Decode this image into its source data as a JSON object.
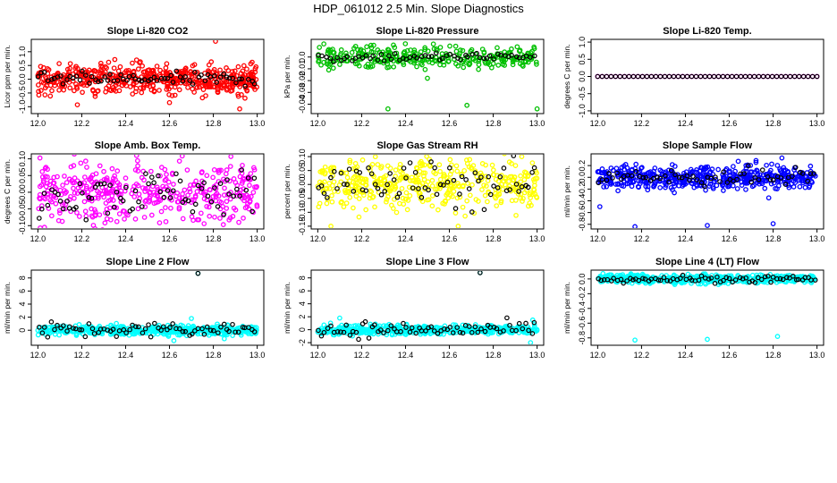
{
  "title": "HDP_061012  2.5 Min. Slope Diagnostics",
  "chart_data": [
    {
      "type": "scatter",
      "title": "Slope Li-820 CO2",
      "ylabel": "Licor ppm per min.",
      "color": "#ff0000",
      "xlim": [
        11.97,
        13.03
      ],
      "ylim": [
        -1.25,
        1.45
      ],
      "xticks": [
        12.0,
        12.2,
        12.4,
        12.6,
        12.8,
        13.0
      ],
      "yticks": [
        -1.0,
        -0.5,
        0.0,
        0.5,
        1.0
      ],
      "ytick_labels": [
        "-1.0",
        "-0.5",
        "0.0",
        "0.5",
        "1.0"
      ],
      "spread": 0.27,
      "black_spread": 0.12,
      "n": 500,
      "nb": 70,
      "outliers": [
        [
          12.81,
          1.38
        ],
        [
          12.18,
          -0.93
        ],
        [
          12.92,
          -1.08
        ],
        [
          12.6,
          -0.85
        ],
        [
          12.45,
          0.7
        ]
      ]
    },
    {
      "type": "scatter",
      "title": "Slope Li-820 Pressure",
      "ylabel": "kPa per min.",
      "color": "#00c000",
      "xlim": [
        11.97,
        13.03
      ],
      "ylim": [
        -0.048,
        0.015
      ],
      "xticks": [
        12.0,
        12.2,
        12.4,
        12.6,
        12.8,
        13.0
      ],
      "yticks": [
        -0.04,
        -0.03,
        -0.02,
        -0.01,
        0.0
      ],
      "ytick_labels": [
        "-0.04",
        "-0.03",
        "-0.02",
        "-0.01",
        "0.0"
      ],
      "spread": 0.0045,
      "black_spread": 0.002,
      "n": 300,
      "nb": 60,
      "outliers": [
        [
          12.32,
          -0.044
        ],
        [
          12.68,
          -0.041
        ],
        [
          13.0,
          -0.044
        ],
        [
          12.05,
          -0.011
        ],
        [
          12.5,
          -0.018
        ]
      ]
    },
    {
      "type": "scatter",
      "title": "Slope Li-820 Temp.",
      "ylabel": "degrees C per min.",
      "color": "#ff00ff",
      "xlim": [
        11.97,
        13.03
      ],
      "ylim": [
        -1.08,
        1.08
      ],
      "xticks": [
        12.0,
        12.2,
        12.4,
        12.6,
        12.8,
        13.0
      ],
      "yticks": [
        -1.0,
        -0.5,
        0.0,
        0.5,
        1.0
      ],
      "ytick_labels": [
        "-1.0",
        "-0.5",
        "0.0",
        "0.5",
        "1.0"
      ],
      "spread": 0.0,
      "black_spread": 0.0,
      "n": 50,
      "nb": 50,
      "constant": true,
      "outliers": []
    },
    {
      "type": "scatter",
      "title": "Slope Amb. Box Temp.",
      "ylabel": "degrees C per min.",
      "color": "#ff00ff",
      "xlim": [
        11.97,
        13.03
      ],
      "ylim": [
        -0.11,
        0.115
      ],
      "xticks": [
        12.0,
        12.2,
        12.4,
        12.6,
        12.8,
        13.0
      ],
      "yticks": [
        -0.1,
        -0.05,
        0.0,
        0.05,
        0.1
      ],
      "ytick_labels": [
        "-0.10",
        "-0.05",
        "0.00",
        "0.05",
        "0.10"
      ],
      "spread": 0.045,
      "black_spread": 0.035,
      "n": 420,
      "nb": 70,
      "outliers": [
        [
          12.45,
          0.11
        ],
        [
          12.03,
          -0.105
        ],
        [
          12.88,
          0.107
        ]
      ]
    },
    {
      "type": "scatter",
      "title": "Slope Gas Stream RH",
      "ylabel": "percent per min.",
      "color": "#ffff00",
      "xlim": [
        11.97,
        13.03
      ],
      "ylim": [
        -0.16,
        0.11
      ],
      "xticks": [
        12.0,
        12.2,
        12.4,
        12.6,
        12.8,
        13.0
      ],
      "yticks": [
        -0.15,
        -0.1,
        -0.05,
        0.0,
        0.05,
        0.1
      ],
      "ytick_labels": [
        "-0.15",
        "-0.10",
        "-0.05",
        "0.00",
        "0.05",
        "0.10"
      ],
      "spread": 0.045,
      "black_spread": 0.045,
      "n": 420,
      "nb": 70,
      "outliers": [
        [
          12.93,
          0.1
        ],
        [
          12.06,
          -0.15
        ],
        [
          12.64,
          -0.15
        ]
      ]
    },
    {
      "type": "scatter",
      "title": "Slope Sample Flow",
      "ylabel": "ml/min per min.",
      "color": "#0000ff",
      "xlim": [
        11.97,
        13.03
      ],
      "ylim": [
        -0.88,
        0.4
      ],
      "xticks": [
        12.0,
        12.2,
        12.4,
        12.6,
        12.8,
        13.0
      ],
      "yticks": [
        -0.8,
        -0.6,
        -0.4,
        -0.2,
        0.0,
        0.2
      ],
      "ytick_labels": [
        "-0.8",
        "-0.6",
        "-0.4",
        "-0.2",
        "0.0",
        "0.2"
      ],
      "spread": 0.1,
      "black_spread": 0.08,
      "n": 480,
      "nb": 60,
      "outliers": [
        [
          12.17,
          -0.84
        ],
        [
          12.5,
          -0.82
        ],
        [
          12.8,
          -0.79
        ],
        [
          12.01,
          -0.5
        ],
        [
          12.84,
          0.33
        ],
        [
          12.78,
          -0.35
        ]
      ]
    },
    {
      "type": "scatter",
      "title": "Slope Line 2 Flow",
      "ylabel": "ml/min per min.",
      "color": "#00ffff",
      "xlim": [
        11.97,
        13.03
      ],
      "ylim": [
        -2.3,
        9.2
      ],
      "xticks": [
        12.0,
        12.2,
        12.4,
        12.6,
        12.8,
        13.0
      ],
      "yticks": [
        0,
        2,
        4,
        6,
        8
      ],
      "ytick_labels": [
        "0",
        "2",
        "4",
        "6",
        "8"
      ],
      "spread": 0.35,
      "black_spread": 0.6,
      "n": 500,
      "nb": 70,
      "outliers": [
        [
          12.73,
          8.7
        ],
        [
          12.62,
          -1.6
        ],
        [
          12.85,
          -1.3
        ],
        [
          12.7,
          1.8
        ]
      ]
    },
    {
      "type": "scatter",
      "title": "Slope Line 3 Flow",
      "ylabel": "ml/min per min.",
      "color": "#00ffff",
      "xlim": [
        11.97,
        13.03
      ],
      "ylim": [
        -2.4,
        9.2
      ],
      "xticks": [
        12.0,
        12.2,
        12.4,
        12.6,
        12.8,
        13.0
      ],
      "yticks": [
        -2,
        0,
        2,
        4,
        6,
        8
      ],
      "ytick_labels": [
        "-2",
        "0",
        "2",
        "4",
        "6",
        "8"
      ],
      "spread": 0.35,
      "black_spread": 0.6,
      "n": 500,
      "nb": 70,
      "outliers": [
        [
          12.74,
          8.8
        ],
        [
          12.1,
          1.8
        ],
        [
          12.97,
          -2.0
        ],
        [
          12.98,
          1.5
        ]
      ]
    },
    {
      "type": "scatter",
      "title": "Slope Line 4 (LT) Flow",
      "ylabel": "ml/min per min.",
      "color": "#00ffff",
      "xlim": [
        11.97,
        13.03
      ],
      "ylim": [
        -0.9,
        0.12
      ],
      "xticks": [
        12.0,
        12.2,
        12.4,
        12.6,
        12.8,
        13.0
      ],
      "yticks": [
        -0.8,
        -0.6,
        -0.4,
        -0.2,
        0.0
      ],
      "ytick_labels": [
        "-0.8",
        "-0.6",
        "-0.4",
        "-0.2",
        "0.0"
      ],
      "spread": 0.03,
      "black_spread": 0.025,
      "n": 500,
      "nb": 70,
      "outliers": [
        [
          12.17,
          -0.83
        ],
        [
          12.5,
          -0.82
        ],
        [
          12.82,
          -0.78
        ]
      ]
    }
  ]
}
